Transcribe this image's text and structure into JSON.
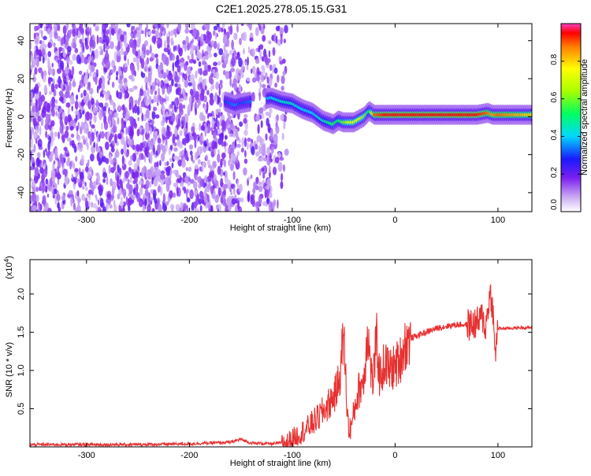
{
  "title": "C2E1.2025.278.05.15.G31",
  "colors": {
    "snr_line": "#e83030",
    "spectral_scatter": "#6a1fd6",
    "axis": "#000000"
  },
  "chart_data": [
    {
      "type": "heatmap",
      "xlabel": "Height of straight line (km)",
      "ylabel": "Frequency (Hz)",
      "xlim": [
        -355,
        133
      ],
      "ylim": [
        -50,
        49
      ],
      "x_ticks": [
        -300,
        -200,
        -100,
        0,
        100
      ],
      "x_tick_labels": [
        "-300",
        "-200",
        "-100",
        "0",
        "100"
      ],
      "y_ticks": [
        -40,
        -20,
        0,
        20,
        40
      ],
      "y_tick_labels": [
        "-40",
        "-20",
        "0",
        "20",
        "40"
      ],
      "colorbar": {
        "label": "Normalized spectral amplitude",
        "range": [
          0,
          1
        ],
        "ticks": [
          0.0,
          0.2,
          0.4,
          0.6,
          0.8
        ],
        "tick_labels": [
          "0.0",
          "0.2",
          "0.4",
          "0.6",
          "0.8"
        ]
      },
      "noise_region": {
        "x_range": [
          -355,
          -105
        ],
        "typical_amplitude": 0.15
      },
      "ridge": {
        "x": [
          -165,
          -155,
          -150,
          -120,
          -110,
          -100,
          -90,
          -80,
          -70,
          -60,
          -55,
          -50,
          -40,
          -30,
          -25,
          -20,
          -10,
          0,
          20,
          50,
          80,
          90,
          95,
          100,
          133
        ],
        "y": [
          8,
          6,
          7,
          10,
          8,
          7,
          4,
          2,
          -2,
          -4,
          -2,
          -3,
          -3,
          0,
          3,
          1,
          1,
          1,
          1,
          1,
          1,
          2,
          1,
          1,
          1
        ],
        "amplitude": [
          0.3,
          0.35,
          0.3,
          0.4,
          0.45,
          0.45,
          0.4,
          0.4,
          0.45,
          0.55,
          0.5,
          0.6,
          0.75,
          0.65,
          0.5,
          0.9,
          0.95,
          0.95,
          0.95,
          0.95,
          0.95,
          0.9,
          0.85,
          0.9,
          0.8
        ]
      }
    },
    {
      "type": "line",
      "xlabel": "Height of straight line (km)",
      "ylabel": "SNR (10 * v/v)",
      "y_scale_note": "(x10",
      "y_scale_exp": "4",
      "xlim": [
        -355,
        133
      ],
      "ylim": [
        0,
        2.45
      ],
      "x_ticks": [
        -300,
        -200,
        -100,
        0,
        100
      ],
      "x_tick_labels": [
        "-300",
        "-200",
        "-100",
        "0",
        "100"
      ],
      "y_ticks": [
        0.5,
        1.0,
        1.5,
        2.0
      ],
      "y_tick_labels": [
        "0.5",
        "1.0",
        "1.5",
        "2.0"
      ],
      "series": [
        {
          "x": [
            -355,
            -300,
            -250,
            -200,
            -160,
            -150,
            -140,
            -120,
            -105,
            -95,
            -85,
            -75,
            -65,
            -58,
            -54,
            -50,
            -47,
            -45,
            -42,
            -38,
            -35,
            -30,
            -27,
            -22,
            -18,
            -15,
            -10,
            -5,
            0,
            5,
            10,
            15,
            20,
            30,
            40,
            50,
            60,
            70,
            75,
            80,
            85,
            88,
            91,
            93,
            95,
            97,
            100,
            110,
            120,
            133
          ],
          "y": [
            0.03,
            0.03,
            0.03,
            0.04,
            0.06,
            0.1,
            0.05,
            0.04,
            0.06,
            0.15,
            0.25,
            0.38,
            0.55,
            0.7,
            0.9,
            1.5,
            0.6,
            0.2,
            0.3,
            0.6,
            0.75,
            0.9,
            1.55,
            0.8,
            1.4,
            0.9,
            1.1,
            1.0,
            1.05,
            1.15,
            1.35,
            1.42,
            1.45,
            1.5,
            1.55,
            1.58,
            1.6,
            1.6,
            1.6,
            1.62,
            1.7,
            1.55,
            1.9,
            2.0,
            1.8,
            1.2,
            1.55,
            1.55,
            1.56,
            1.56
          ]
        }
      ]
    }
  ]
}
